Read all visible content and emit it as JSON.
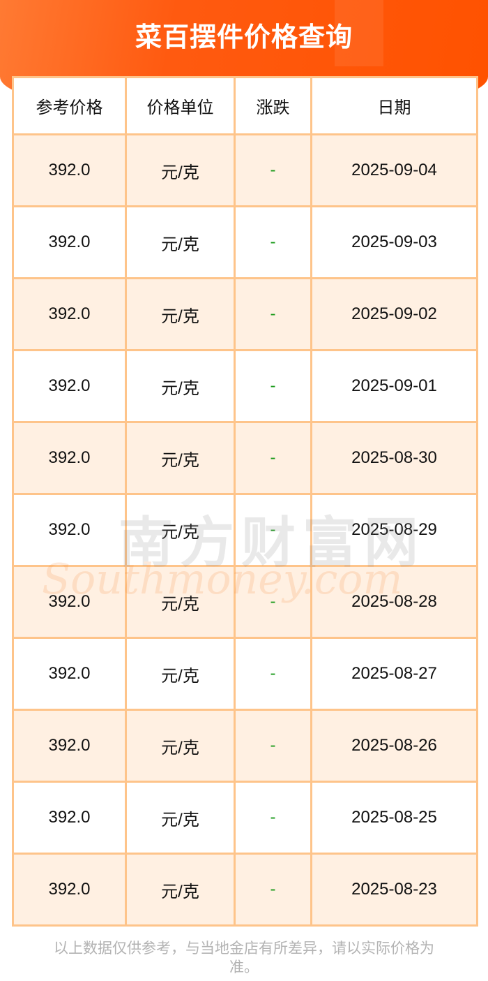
{
  "header": {
    "title": "菜百摆件价格查询"
  },
  "table": {
    "columns": [
      "参考价格",
      "价格单位",
      "涨跌",
      "日期"
    ],
    "rows": [
      {
        "price": "392.0",
        "unit": "元/克",
        "change": "-",
        "date": "2025-09-04"
      },
      {
        "price": "392.0",
        "unit": "元/克",
        "change": "-",
        "date": "2025-09-03"
      },
      {
        "price": "392.0",
        "unit": "元/克",
        "change": "-",
        "date": "2025-09-02"
      },
      {
        "price": "392.0",
        "unit": "元/克",
        "change": "-",
        "date": "2025-09-01"
      },
      {
        "price": "392.0",
        "unit": "元/克",
        "change": "-",
        "date": "2025-08-30"
      },
      {
        "price": "392.0",
        "unit": "元/克",
        "change": "-",
        "date": "2025-08-29"
      },
      {
        "price": "392.0",
        "unit": "元/克",
        "change": "-",
        "date": "2025-08-28"
      },
      {
        "price": "392.0",
        "unit": "元/克",
        "change": "-",
        "date": "2025-08-27"
      },
      {
        "price": "392.0",
        "unit": "元/克",
        "change": "-",
        "date": "2025-08-26"
      },
      {
        "price": "392.0",
        "unit": "元/克",
        "change": "-",
        "date": "2025-08-25"
      },
      {
        "price": "392.0",
        "unit": "元/克",
        "change": "-",
        "date": "2025-08-23"
      }
    ]
  },
  "watermark": {
    "cn": "南方财富网",
    "en": "Southmoney.com"
  },
  "footer": {
    "note": "以上数据仅供参考，与当地金店有所差异，请以实际价格为准。"
  },
  "colors": {
    "brand": "#ff5200",
    "border": "#fec48a",
    "stripe": "#fff0e2",
    "change": "#1a9a1a"
  }
}
